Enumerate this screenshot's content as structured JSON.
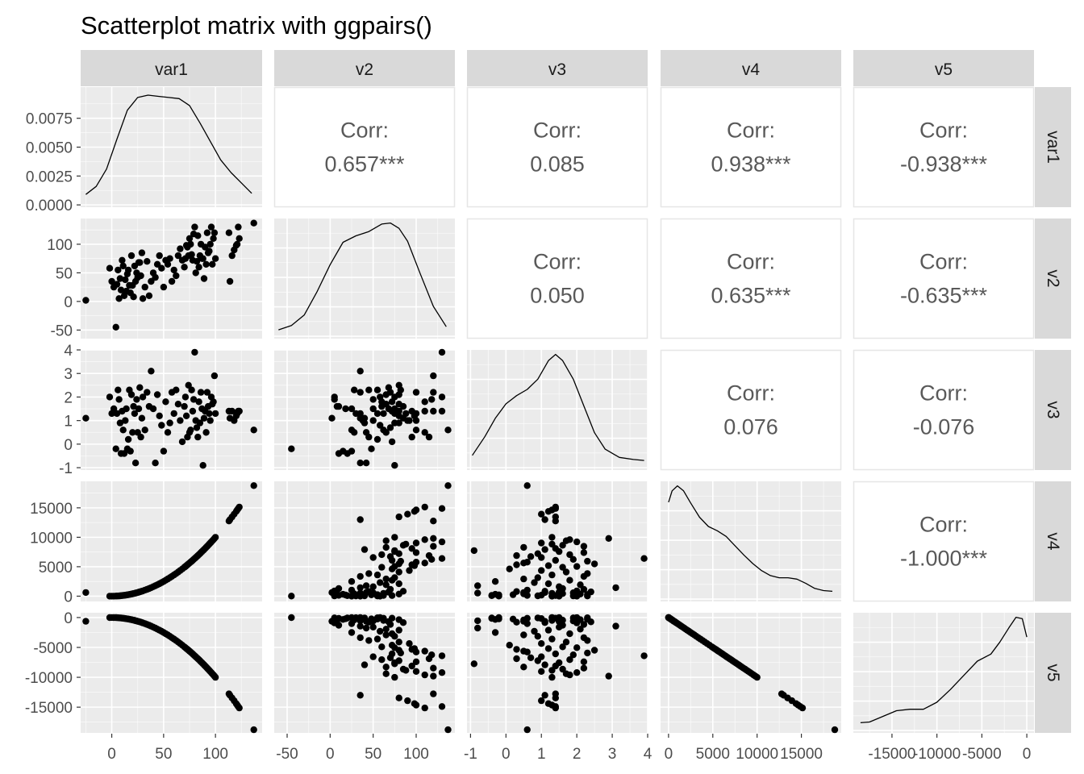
{
  "title": "Scatterplot matrix with ggpairs()",
  "variables": [
    "var1",
    "v2",
    "v3",
    "v4",
    "v5"
  ],
  "colors": {
    "panel_background": "#EBEBEB",
    "grid_major": "#FFFFFF",
    "strip_background": "#D9D9D9",
    "point": "#000000",
    "corr_text": "#595959",
    "corr_border": "#E6E6E6"
  },
  "chart_data": {
    "type": "scatter",
    "layout": "pairs-matrix",
    "grid": true,
    "corr_label": "Corr:",
    "correlations": [
      {
        "row": "var1",
        "col": "v2",
        "value": "0.657***"
      },
      {
        "row": "var1",
        "col": "v3",
        "value": "0.085"
      },
      {
        "row": "var1",
        "col": "v4",
        "value": "0.938***"
      },
      {
        "row": "var1",
        "col": "v5",
        "value": "-0.938***"
      },
      {
        "row": "v2",
        "col": "v3",
        "value": "0.050"
      },
      {
        "row": "v2",
        "col": "v4",
        "value": "0.635***"
      },
      {
        "row": "v2",
        "col": "v5",
        "value": "-0.635***"
      },
      {
        "row": "v3",
        "col": "v4",
        "value": "0.076"
      },
      {
        "row": "v3",
        "col": "v5",
        "value": "-0.076"
      },
      {
        "row": "v4",
        "col": "v5",
        "value": "-1.000***"
      }
    ],
    "axes": {
      "var1": {
        "range": [
          -30,
          145
        ],
        "ticks": [
          0,
          50,
          100
        ],
        "tick_labels": [
          "0",
          "50",
          "100"
        ]
      },
      "v2": {
        "range": [
          -65,
          145
        ],
        "ticks": [
          -50,
          0,
          50,
          100
        ],
        "tick_labels": [
          "-50",
          "0",
          "50",
          "100"
        ]
      },
      "v3": {
        "range": [
          -1.1,
          4.0
        ],
        "ticks": [
          -1,
          0,
          1,
          2,
          3,
          4
        ],
        "tick_labels": [
          "-1",
          "0",
          "1",
          "2",
          "3",
          "4"
        ]
      },
      "v4": {
        "range": [
          -900,
          19500
        ],
        "ticks": [
          0,
          5000,
          10000,
          15000
        ],
        "tick_labels": [
          "0",
          "5000",
          "10000",
          "15000"
        ]
      },
      "v5": {
        "range": [
          -19300,
          800
        ],
        "ticks": [
          -15000,
          -10000,
          -5000,
          0
        ],
        "tick_labels": [
          "-15000",
          "-10000",
          "-5000",
          "0"
        ]
      }
    },
    "density_axis": {
      "range": [
        -0.0002,
        0.0102
      ],
      "ticks": [
        0,
        0.0025,
        0.005,
        0.0075
      ],
      "tick_labels": [
        "0.0000",
        "0.0025",
        "0.0050",
        "0.0075"
      ]
    },
    "densities": {
      "var1": {
        "x": [
          -25,
          -15,
          -5,
          5,
          15,
          25,
          35,
          45,
          55,
          65,
          75,
          85,
          95,
          105,
          115,
          125,
          135
        ],
        "y": [
          0.0009,
          0.0016,
          0.0031,
          0.0057,
          0.0082,
          0.0093,
          0.0095,
          0.0094,
          0.0093,
          0.0092,
          0.0086,
          0.0071,
          0.0055,
          0.0039,
          0.0028,
          0.0019,
          0.001
        ]
      },
      "v2": {
        "x": [
          -60,
          -45,
          -30,
          -15,
          0,
          15,
          30,
          45,
          60,
          70,
          80,
          90,
          105,
          120,
          135
        ],
        "y": [
          0.0006,
          0.001,
          0.002,
          0.0042,
          0.0067,
          0.0088,
          0.0094,
          0.0098,
          0.0105,
          0.0106,
          0.0101,
          0.0089,
          0.0058,
          0.0028,
          0.0009
        ]
      },
      "v3": {
        "x": [
          -0.95,
          -0.6,
          -0.3,
          0,
          0.3,
          0.6,
          0.9,
          1.2,
          1.4,
          1.6,
          1.9,
          2.2,
          2.5,
          2.8,
          3.2,
          3.6,
          3.9
        ],
        "y": [
          0.06,
          0.15,
          0.24,
          0.31,
          0.35,
          0.38,
          0.43,
          0.52,
          0.55,
          0.52,
          0.43,
          0.3,
          0.17,
          0.09,
          0.05,
          0.04,
          0.035
        ]
      },
      "v4": {
        "x": [
          0,
          400,
          1000,
          1700,
          2500,
          3500,
          4500,
          5500,
          6500,
          7500,
          8500,
          9500,
          10500,
          11500,
          12500,
          13500,
          14500,
          15500,
          16500,
          17500,
          18500
        ],
        "y": [
          0.000136,
          0.000152,
          0.000159,
          0.000152,
          0.000135,
          0.000115,
          0.000102,
          9.6e-05,
          8.8e-05,
          7.5e-05,
          6.2e-05,
          5e-05,
          4e-05,
          3.3e-05,
          3e-05,
          3e-05,
          2.8e-05,
          2.2e-05,
          1.5e-05,
          1.2e-05,
          1.1e-05
        ]
      },
      "v5": {
        "x": [
          -18500,
          -17500,
          -16000,
          -14500,
          -13000,
          -11500,
          -10000,
          -8500,
          -7000,
          -5500,
          -4000,
          -3000,
          -2000,
          -1200,
          -500,
          0
        ],
        "y": [
          1.1e-05,
          1.2e-05,
          2e-05,
          2.8e-05,
          3e-05,
          3e-05,
          4e-05,
          5.8e-05,
          7.8e-05,
          9.8e-05,
          0.000108,
          0.000125,
          0.000145,
          0.00016,
          0.000158,
          0.000132
        ]
      }
    },
    "observations": {
      "var1": [
        -25,
        -2,
        0,
        2,
        4,
        5,
        6,
        7,
        8,
        9,
        10,
        11,
        12,
        13,
        14,
        15,
        16,
        17,
        18,
        19,
        20,
        21,
        22,
        23,
        24,
        25,
        26,
        27,
        28,
        29,
        30,
        32,
        34,
        36,
        38,
        40,
        42,
        44,
        46,
        48,
        50,
        52,
        54,
        56,
        58,
        60,
        62,
        64,
        66,
        68,
        70,
        71,
        72,
        73,
        74,
        75,
        76,
        77,
        78,
        79,
        80,
        81,
        82,
        83,
        84,
        85,
        86,
        87,
        88,
        89,
        90,
        91,
        92,
        93,
        94,
        95,
        96,
        97,
        98,
        99,
        100,
        113,
        114,
        116,
        118,
        120,
        121,
        122,
        123,
        137
      ],
      "v2": [
        2,
        58,
        35,
        25,
        -45,
        30,
        55,
        5,
        40,
        20,
        72,
        62,
        10,
        38,
        18,
        48,
        55,
        28,
        15,
        80,
        28,
        8,
        62,
        35,
        50,
        42,
        68,
        68,
        45,
        85,
        5,
        25,
        70,
        10,
        35,
        50,
        42,
        65,
        80,
        58,
        25,
        72,
        65,
        75,
        35,
        55,
        45,
        80,
        92,
        72,
        60,
        75,
        98,
        95,
        80,
        110,
        100,
        82,
        72,
        118,
        130,
        50,
        70,
        115,
        60,
        80,
        100,
        75,
        75,
        40,
        95,
        65,
        120,
        85,
        88,
        100,
        130,
        65,
        110,
        120,
        75,
        120,
        35,
        80,
        90,
        98,
        100,
        130,
        110,
        137
      ],
      "v3": [
        1.1,
        2.0,
        1.3,
        1.5,
        -0.2,
        1.3,
        2.3,
        1.9,
        0.9,
        -0.4,
        1.4,
        0.6,
        -0.4,
        1.0,
        1.5,
        -0.2,
        0.2,
        2.3,
        -0.3,
        2.1,
        0.5,
        1.6,
        1.3,
        -0.8,
        1.9,
        0.5,
        1.5,
        2.4,
        0.3,
        1.1,
        2.0,
        0.6,
        2.2,
        1.6,
        3.1,
        1.5,
        -0.8,
        2.1,
        1.2,
        0.8,
        -0.3,
        1.8,
        0.5,
        0.9,
        2.2,
        1.3,
        2.3,
        1.7,
        1.0,
        0.1,
        1.6,
        2.0,
        1.2,
        0.3,
        2.5,
        0.5,
        0.6,
        2.3,
        1.4,
        1.9,
        3.9,
        1.0,
        0.7,
        0.3,
        1.8,
        0.9,
        2.2,
        1.5,
        -0.9,
        1.1,
        1.4,
        0.5,
        2.2,
        1.6,
        1.3,
        1.0,
        2.0,
        1.7,
        1.8,
        2.9,
        1.3,
        1.4,
        1.1,
        1.4,
        1.0,
        1.2,
        1.3,
        1.4,
        1.4,
        0.6
      ]
    }
  }
}
